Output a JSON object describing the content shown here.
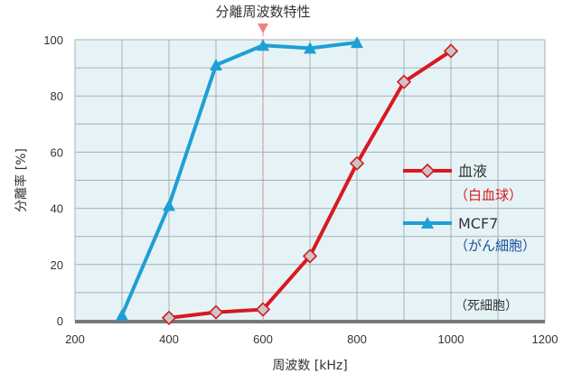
{
  "chart_data": {
    "type": "line",
    "annotation": "分離周波数特性",
    "annotation_x": 600,
    "xlabel": "周波数 [kHz]",
    "ylabel": "分離率 [%]",
    "xlim": [
      200,
      1200
    ],
    "ylim": [
      0,
      100
    ],
    "xticks": [
      200,
      400,
      600,
      800,
      1000,
      1200
    ],
    "yticks": [
      0,
      20,
      40,
      60,
      80,
      100
    ],
    "grid": true,
    "legend_position": "right",
    "note": "（死細胞）",
    "colors": {
      "plot_bg": "#e6f3f6",
      "grid": "#a7b0b3",
      "blue_series": "#1e9fd6",
      "red_series": "#d71920",
      "red_marker_fill": "#c7c7c7",
      "red_marker_edge": "#d71920",
      "sub_red": "#d71920",
      "sub_blue": "#1a4f9c",
      "annotation_marker": "#f08080"
    },
    "series": [
      {
        "name": "MCF7",
        "sub": "（がん細胞）",
        "color": "#1e9fd6",
        "marker": "triangle",
        "x": [
          300,
          400,
          500,
          600,
          700,
          800
        ],
        "y": [
          2,
          41,
          91,
          98,
          97,
          99
        ]
      },
      {
        "name": "血液",
        "sub": "（白血球）",
        "color": "#d71920",
        "marker": "diamond",
        "x": [
          400,
          500,
          600,
          700,
          800,
          900,
          1000
        ],
        "y": [
          1,
          3,
          4,
          23,
          56,
          85,
          96
        ]
      }
    ]
  }
}
